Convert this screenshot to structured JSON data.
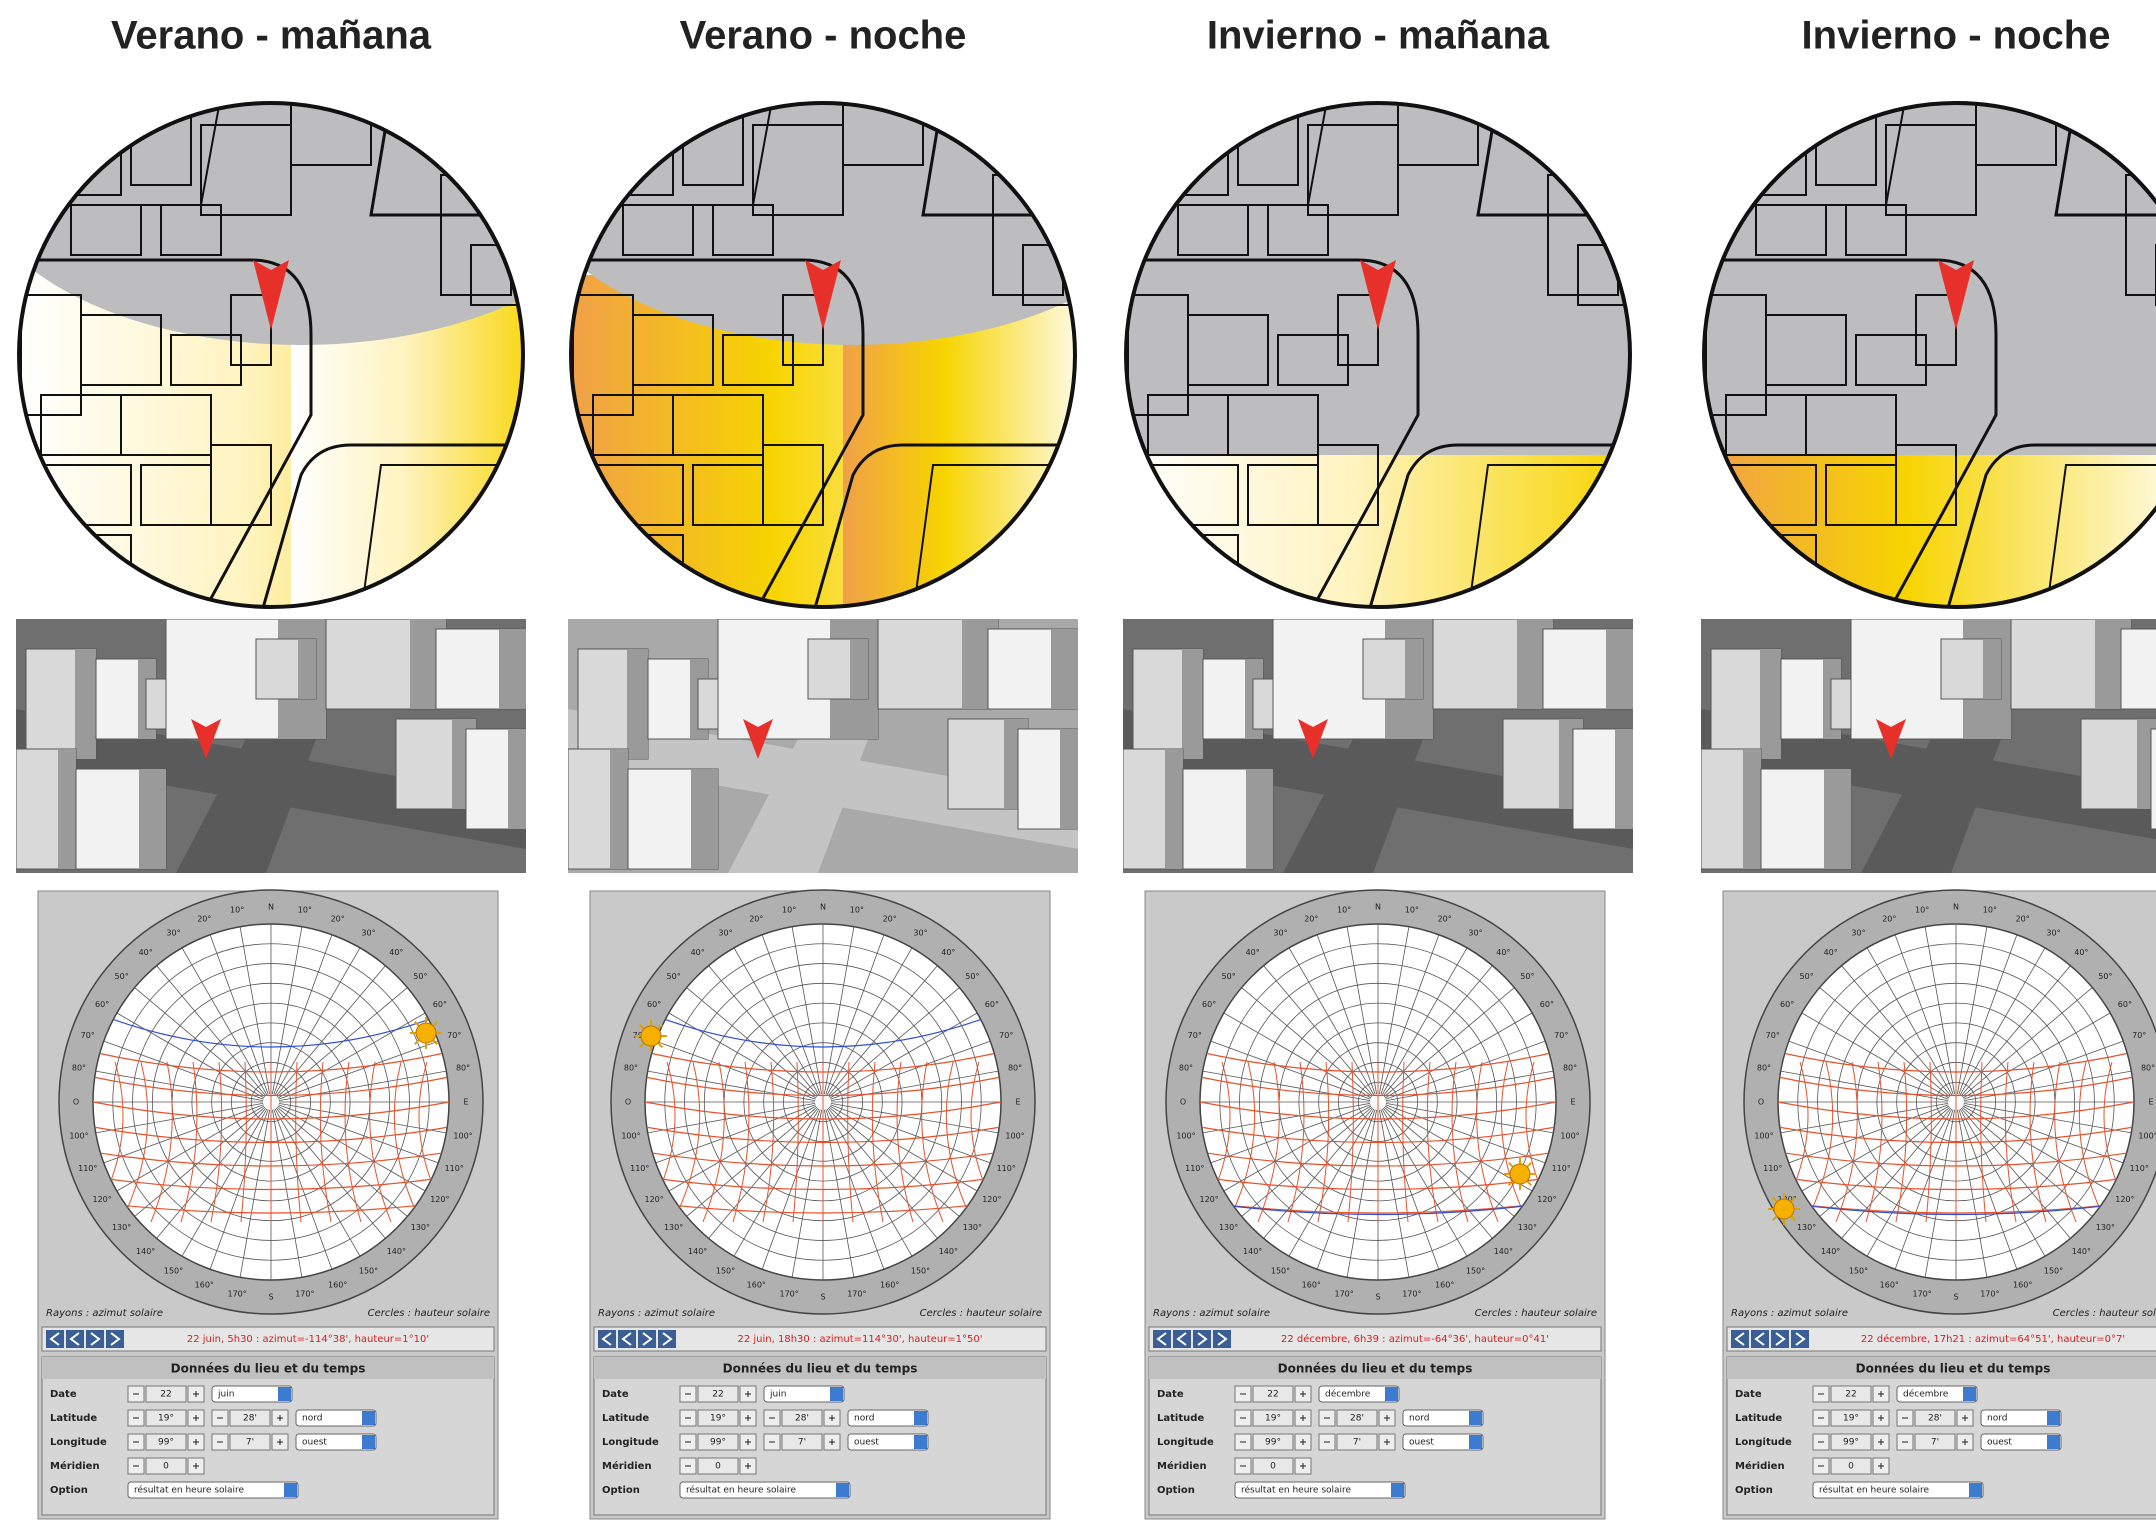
{
  "panels": [
    {
      "title": "Verano - mañana",
      "status": "22 juin, 5h30 : azimut=-114°38', hauteur=1°10'",
      "form": {
        "title": "Données du lieu et du temps",
        "rows": [
          {
            "label": "Date",
            "fields": [
              "22",
              "juin"
            ]
          },
          {
            "label": "Latitude",
            "fields": [
              "19°",
              "28'",
              "nord"
            ]
          },
          {
            "label": "Longitude",
            "fields": [
              "99°",
              "7'",
              "ouest"
            ]
          },
          {
            "label": "Méridien",
            "fields": [
              "0"
            ]
          },
          {
            "label": "Option",
            "fields": [
              "résultat en heure solaire"
            ]
          }
        ]
      }
    },
    {
      "title": "Verano -  noche",
      "status": "22 juin, 18h30 : azimut=114°30', hauteur=1°50'",
      "form": {
        "title": "Données du lieu et du temps",
        "rows": [
          {
            "label": "Date",
            "fields": [
              "22",
              "juin"
            ]
          },
          {
            "label": "Latitude",
            "fields": [
              "19°",
              "28'",
              "nord"
            ]
          },
          {
            "label": "Longitude",
            "fields": [
              "99°",
              "7'",
              "ouest"
            ]
          },
          {
            "label": "Méridien",
            "fields": [
              "0"
            ]
          },
          {
            "label": "Option",
            "fields": [
              "résultat en heure solaire"
            ]
          }
        ]
      }
    },
    {
      "title": "Invierno - mañana",
      "status": "22 décembre, 6h39 : azimut=-64°36', hauteur=0°41'",
      "form": {
        "title": "Données du lieu et du temps",
        "rows": [
          {
            "label": "Date",
            "fields": [
              "22",
              "décembre"
            ]
          },
          {
            "label": "Latitude",
            "fields": [
              "19°",
              "28'",
              "nord"
            ]
          },
          {
            "label": "Longitude",
            "fields": [
              "99°",
              "7'",
              "ouest"
            ]
          },
          {
            "label": "Méridien",
            "fields": [
              "0"
            ]
          },
          {
            "label": "Option",
            "fields": [
              "résultat en heure solaire"
            ]
          }
        ]
      }
    },
    {
      "title": "Invierno - noche",
      "status": "22 décembre, 17h21 : azimut=64°51', hauteur=0°7'",
      "form": {
        "title": "Données du lieu et du temps",
        "rows": [
          {
            "label": "Date",
            "fields": [
              "22",
              "décembre"
            ]
          },
          {
            "label": "Latitude",
            "fields": [
              "19°",
              "28'",
              "nord"
            ]
          },
          {
            "label": "Longitude",
            "fields": [
              "99°",
              "7'",
              "ouest"
            ]
          },
          {
            "label": "Méridien",
            "fields": [
              "0"
            ]
          },
          {
            "label": "Option",
            "fields": [
              "résultat en heure solaire"
            ]
          }
        ]
      }
    }
  ],
  "legend": {
    "rays": "Rayons : azimut solaire",
    "circles": "Cercles : hauteur solaire"
  },
  "ring_labels": [
    "N",
    "10°",
    "20°",
    "30°",
    "40°",
    "50°",
    "60°",
    "70°",
    "80°",
    "E",
    "100°",
    "110°",
    "120°",
    "130°",
    "140°",
    "150°",
    "160°",
    "170°",
    "S",
    "170°",
    "160°",
    "150°",
    "140°",
    "130°",
    "120°",
    "110°",
    "100°",
    "O",
    "80°",
    "70°",
    "60°",
    "50°",
    "40°",
    "30°",
    "20°",
    "10°"
  ]
}
